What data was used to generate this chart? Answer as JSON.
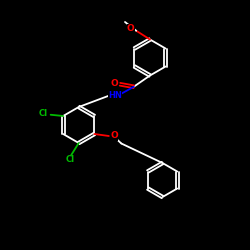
{
  "background_color": "#000000",
  "bond_color": "#ffffff",
  "heteroatom_colors": {
    "O": "#ff0000",
    "N": "#0000ff",
    "Cl": "#00bb00"
  },
  "figsize": [
    2.5,
    2.5
  ],
  "dpi": 100,
  "lw": 1.3,
  "r_ring": 0.72,
  "r_ring2": 0.68
}
